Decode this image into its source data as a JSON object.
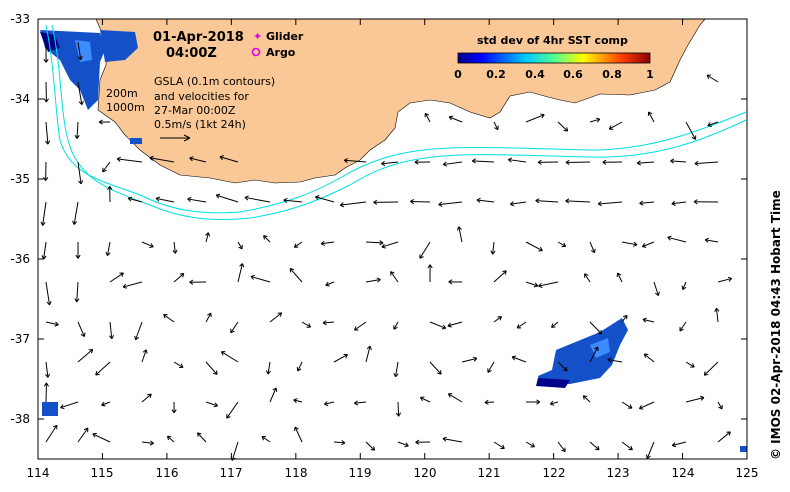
{
  "title": {
    "date": "01-Apr-2018",
    "time": "04:00Z"
  },
  "legend": {
    "glider": "Glider",
    "argo": "Argo",
    "glider_color": "#e000e0",
    "argo_color": "#e000e0"
  },
  "notes": {
    "depth_200": "200m",
    "depth_1000": "1000m",
    "gsla_1": "GSLA (0.1m contours)",
    "gsla_2": "and velocities for",
    "gsla_3": "27-Mar 00:00Z",
    "scale": "0.5m/s (1kt 24h)"
  },
  "colorbar": {
    "title": "std dev of 4hr SST comp",
    "ticks": [
      "0",
      "0.2",
      "0.4",
      "0.6",
      "0.8",
      "1"
    ],
    "range": [
      0,
      1
    ]
  },
  "axes": {
    "x_ticks": [
      "114",
      "115",
      "116",
      "117",
      "118",
      "119",
      "120",
      "121",
      "122",
      "123",
      "124",
      "125"
    ],
    "y_ticks": [
      "-33",
      "-34",
      "-35",
      "-36",
      "-37",
      "-38"
    ],
    "xlim": [
      114,
      125
    ],
    "ylim": [
      -38.5,
      -33
    ]
  },
  "credit": "©  IMOS 02-Apr-2018 04:43 Hobart Time",
  "colors": {
    "land": "#f9c896",
    "isobath": "#00e0e0",
    "sst_low": "#00008b",
    "sst_mid": "#1e64ff",
    "background": "#ffffff"
  }
}
